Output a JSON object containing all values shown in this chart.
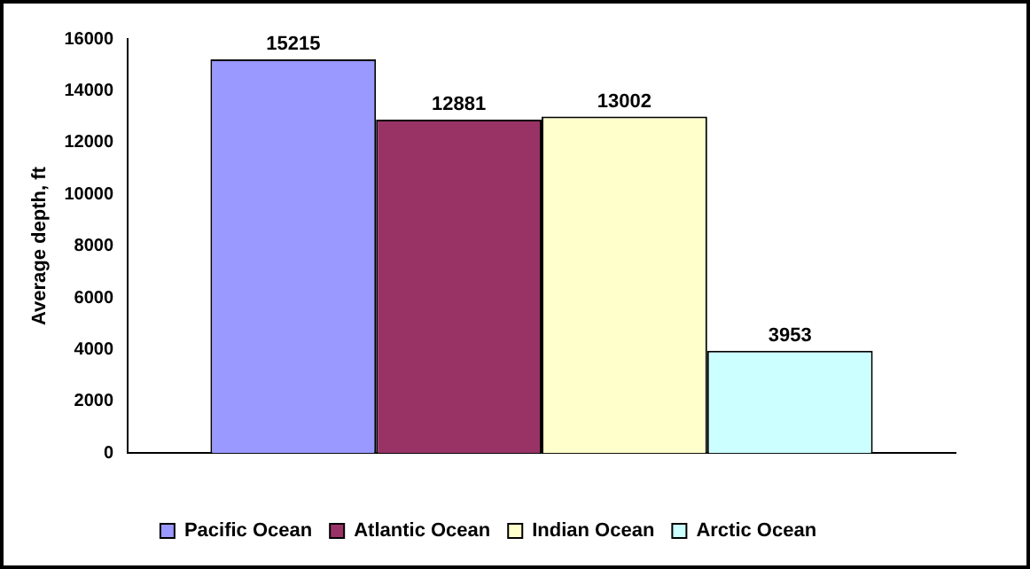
{
  "chart_data": {
    "type": "bar",
    "ylabel": "Average depth, ft",
    "categories": [
      null
    ],
    "series": [
      {
        "name": "Pacific Ocean",
        "color": "#9999ff",
        "values": [
          15215
        ]
      },
      {
        "name": "Atlantic Ocean",
        "color": "#993366",
        "values": [
          12881
        ]
      },
      {
        "name": "Indian Ocean",
        "color": "#ffffcc",
        "values": [
          13002
        ]
      },
      {
        "name": "Arctic Ocean",
        "color": "#ccffff",
        "values": [
          3953
        ]
      }
    ],
    "ylim": [
      0,
      16000
    ],
    "yticks": [
      0,
      2000,
      4000,
      6000,
      8000,
      10000,
      12000,
      14000,
      16000
    ],
    "grid": false,
    "legend": "bottom",
    "data_labels": true
  }
}
